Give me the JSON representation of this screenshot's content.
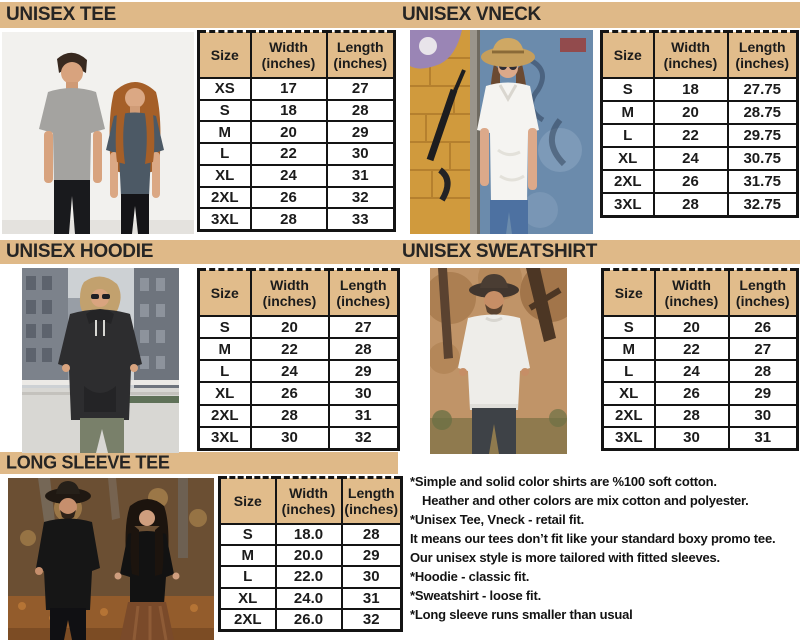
{
  "colors": {
    "band_bg": "#dfb988",
    "table_header_bg": "#e1bc8b",
    "border": "#141414",
    "text": "#1b1b1b",
    "page_bg": "#ffffff"
  },
  "sections": [
    {
      "title": "UNISEX TEE",
      "table": {
        "col_size": "Size",
        "col_width": "Width",
        "col_length": "Length",
        "unit": "(inches)",
        "rows": [
          [
            "XS",
            "17",
            "27"
          ],
          [
            "S",
            "18",
            "28"
          ],
          [
            "M",
            "20",
            "29"
          ],
          [
            "L",
            "22",
            "30"
          ],
          [
            "XL",
            "24",
            "31"
          ],
          [
            "2XL",
            "26",
            "32"
          ],
          [
            "3XL",
            "28",
            "33"
          ]
        ]
      }
    },
    {
      "title": "UNISEX VNECK",
      "table": {
        "col_size": "Size",
        "col_width": "Width",
        "col_length": "Length",
        "unit": "(inches)",
        "rows": [
          [
            "S",
            "18",
            "27.75"
          ],
          [
            "M",
            "20",
            "28.75"
          ],
          [
            "L",
            "22",
            "29.75"
          ],
          [
            "XL",
            "24",
            "30.75"
          ],
          [
            "2XL",
            "26",
            "31.75"
          ],
          [
            "3XL",
            "28",
            "32.75"
          ]
        ]
      }
    },
    {
      "title": "UNISEX HOODIE",
      "table": {
        "col_size": "Size",
        "col_width": "Width",
        "col_length": "Length",
        "unit": "(inches)",
        "rows": [
          [
            "S",
            "20",
            "27"
          ],
          [
            "M",
            "22",
            "28"
          ],
          [
            "L",
            "24",
            "29"
          ],
          [
            "XL",
            "26",
            "30"
          ],
          [
            "2XL",
            "28",
            "31"
          ],
          [
            "3XL",
            "30",
            "32"
          ]
        ]
      }
    },
    {
      "title": "UNISEX SWEATSHIRT",
      "table": {
        "col_size": "Size",
        "col_width": "Width",
        "col_length": "Length",
        "unit": "(inches)",
        "rows": [
          [
            "S",
            "20",
            "26"
          ],
          [
            "M",
            "22",
            "27"
          ],
          [
            "L",
            "24",
            "28"
          ],
          [
            "XL",
            "26",
            "29"
          ],
          [
            "2XL",
            "28",
            "30"
          ],
          [
            "3XL",
            "30",
            "31"
          ]
        ]
      }
    },
    {
      "title": "LONG SLEEVE TEE",
      "table": {
        "col_size": "Size",
        "col_width": "Width",
        "col_length": "Length",
        "unit": "(inches)",
        "rows": [
          [
            "S",
            "18.0",
            "28"
          ],
          [
            "M",
            "20.0",
            "29"
          ],
          [
            "L",
            "22.0",
            "30"
          ],
          [
            "XL",
            "24.0",
            "31"
          ],
          [
            "2XL",
            "26.0",
            "32"
          ]
        ]
      }
    }
  ],
  "notes": [
    "*Simple and solid color shirts are %100 soft cotton.",
    "Heather and other colors are mix cotton and polyester.",
    "*Unisex Tee, Vneck - retail fit.",
    "It means our tees don’t fit like your standard boxy promo tee.",
    "Our unisex style is more tailored with fitted sleeves.",
    "*Hoodie - classic fit.",
    "*Sweatshirt - loose fit.",
    "*Long sleeve runs smaller than usual"
  ]
}
